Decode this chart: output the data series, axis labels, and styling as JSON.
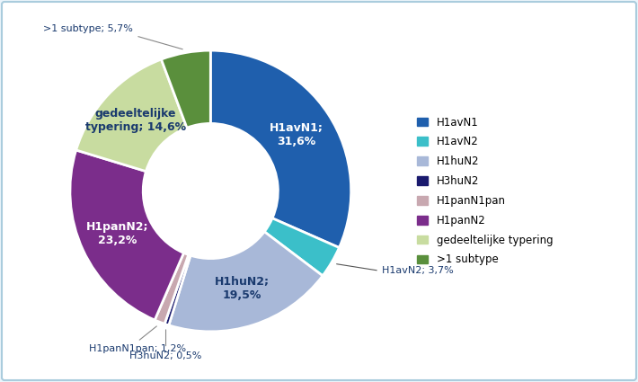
{
  "labels": [
    "H1avN1",
    "H1avN2",
    "H1huN2",
    "H3huN2",
    "H1panN1pan",
    "H1panN2",
    "gedeeltelijke typering",
    ">1 subtype"
  ],
  "values": [
    31.6,
    3.7,
    19.5,
    0.5,
    1.2,
    23.2,
    14.6,
    5.7
  ],
  "colors": [
    "#1F5FAD",
    "#3BBFC9",
    "#A8B8D8",
    "#1A1A6E",
    "#C8A8B0",
    "#7B2D8B",
    "#C8DCA0",
    "#5A8F3C"
  ],
  "legend_labels": [
    "H1avN1",
    "H1avN2",
    "H1huN2",
    "H3huN2",
    "H1panN1pan",
    "H1panN2",
    "gedeeltelijke typering",
    ">1 subtype"
  ],
  "background_color": "#EAF4FB",
  "chart_bg": "#FFFFFF",
  "label_text_color": "#1A3A6E",
  "internal_labels": [
    {
      "idx": 0,
      "text": "H1avN1;\n31,6%",
      "color": "white",
      "fontsize": 9,
      "fontweight": "bold"
    },
    {
      "idx": 2,
      "text": "H1huN2;\n19,5%",
      "color": "#1A3A6E",
      "fontsize": 9,
      "fontweight": "bold"
    },
    {
      "idx": 5,
      "text": "H1panN2;\n23,2%",
      "color": "white",
      "fontsize": 9,
      "fontweight": "bold"
    },
    {
      "idx": 6,
      "text": "gedeeltelijke\ntypering; 14,6%",
      "color": "#1A3A6E",
      "fontsize": 9,
      "fontweight": "bold"
    }
  ],
  "external_labels": [
    {
      "idx": 1,
      "text": "H1avN2; 3,7%",
      "color": "#1A3A6E",
      "fontsize": 8,
      "ha": "left"
    },
    {
      "idx": 3,
      "text": "H3huN2; 0,5%",
      "color": "#1A3A6E",
      "fontsize": 8,
      "ha": "center"
    },
    {
      "idx": 4,
      "text": "H1panN1pan; 1,2%",
      "color": "#1A3A6E",
      "fontsize": 8,
      "ha": "left"
    },
    {
      "idx": 7,
      "text": ">1 subtype; 5,7%",
      "color": "#1A3A6E",
      "fontsize": 8,
      "ha": "left"
    }
  ]
}
